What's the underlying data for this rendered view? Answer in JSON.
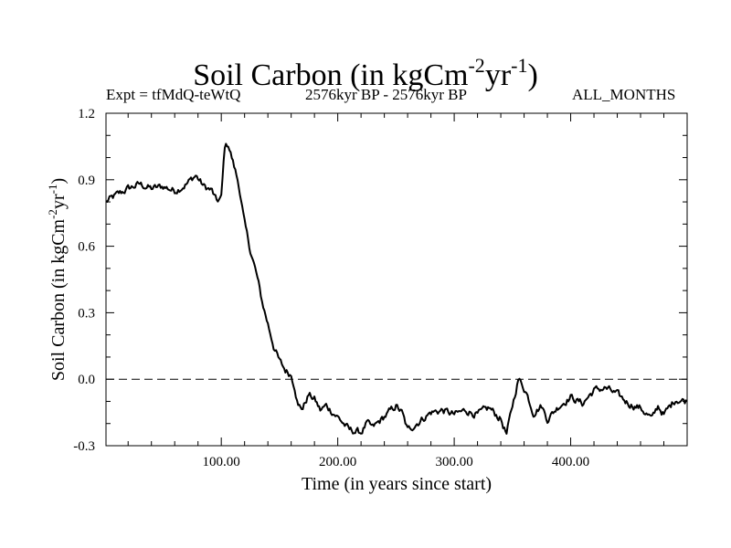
{
  "header": {
    "title_main": "Soil Carbon (in kgCm",
    "title_exp1": "-2",
    "title_mid": "yr",
    "title_exp2": "-1",
    "title_end": ")",
    "experiment": "Expt = tfMdQ-teWtQ",
    "period": "2576kyr BP - 2576kyr BP",
    "months": "ALL_MONTHS"
  },
  "axes": {
    "xlabel": "Time (in years since start)",
    "ylabel_main": "Soil Carbon (in kgCm",
    "ylabel_exp1": "-2",
    "ylabel_mid": "yr",
    "ylabel_exp2": "-1",
    "ylabel_end": ")"
  },
  "chart_data": {
    "type": "line",
    "title": "Soil Carbon (in kgCm-2yr-1)",
    "xlabel": "Time (in years since start)",
    "ylabel": "Soil Carbon (in kgCm-2yr-1)",
    "xlim": [
      1,
      500
    ],
    "ylim": [
      -0.3,
      1.2
    ],
    "x_ticks": [
      100,
      200,
      300,
      400
    ],
    "x_tick_labels": [
      "100.00",
      "200.00",
      "300.00",
      "400.00"
    ],
    "y_ticks": [
      -0.3,
      0.0,
      0.3,
      0.6,
      0.9,
      1.2
    ],
    "y_tick_labels": [
      "-0.3",
      "0.0",
      "0.3",
      "0.6",
      "0.9",
      "1.2"
    ],
    "zero_line": 0.0,
    "grid": false,
    "series": [
      {
        "name": "Soil Carbon",
        "x": [
          1,
          10,
          20,
          30,
          40,
          50,
          60,
          70,
          78,
          85,
          92,
          96,
          100,
          103,
          106,
          110,
          115,
          120,
          125,
          130,
          135,
          140,
          145,
          150,
          155,
          160,
          163,
          166,
          170,
          175,
          180,
          185,
          190,
          200,
          210,
          220,
          225,
          230,
          240,
          250,
          255,
          260,
          270,
          280,
          290,
          300,
          310,
          320,
          330,
          340,
          345,
          350,
          355,
          358,
          362,
          368,
          375,
          380,
          390,
          400,
          410,
          420,
          430,
          440,
          450,
          460,
          470,
          475,
          480,
          490,
          500
        ],
        "y": [
          0.8,
          0.83,
          0.86,
          0.88,
          0.86,
          0.87,
          0.85,
          0.88,
          0.92,
          0.87,
          0.85,
          0.8,
          0.82,
          1.05,
          1.06,
          0.98,
          0.88,
          0.7,
          0.58,
          0.48,
          0.35,
          0.25,
          0.15,
          0.08,
          0.04,
          0.02,
          -0.03,
          -0.12,
          -0.13,
          -0.07,
          -0.09,
          -0.14,
          -0.12,
          -0.17,
          -0.23,
          -0.24,
          -0.2,
          -0.22,
          -0.17,
          -0.12,
          -0.15,
          -0.23,
          -0.19,
          -0.15,
          -0.14,
          -0.16,
          -0.14,
          -0.16,
          -0.13,
          -0.18,
          -0.25,
          -0.12,
          0.0,
          -0.02,
          -0.06,
          -0.15,
          -0.12,
          -0.18,
          -0.12,
          -0.08,
          -0.11,
          -0.05,
          -0.04,
          -0.07,
          -0.11,
          -0.13,
          -0.18,
          -0.12,
          -0.16,
          -0.09,
          -0.1
        ]
      }
    ]
  }
}
